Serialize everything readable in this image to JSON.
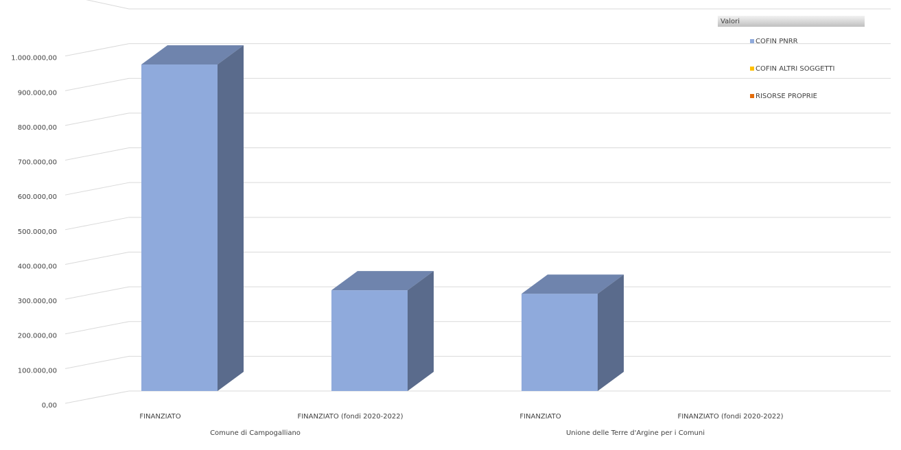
{
  "chart_data": {
    "type": "bar3d",
    "groups": [
      {
        "label": "Comune di Campogalliano",
        "categories": [
          "FINANZIATO",
          "FINANZIATO (fondi 2020-2022)"
        ]
      },
      {
        "label": "Unione delle Terre d'Argine per i Comuni",
        "categories": [
          "FINANZIATO",
          "FINANZIATO (fondi 2020-2022)"
        ]
      }
    ],
    "legend_title": "Valori",
    "series": [
      {
        "name": "COFIN PNRR",
        "color": "#8faadc",
        "values": [
          940000,
          290000,
          280000,
          null
        ]
      },
      {
        "name": "COFIN ALTRI SOGGETTI",
        "color": "#ffc000",
        "values": [
          null,
          null,
          null,
          null
        ]
      },
      {
        "name": "RISORSE PROPRIE",
        "color": "#e46c0a",
        "values": [
          null,
          null,
          null,
          null
        ]
      }
    ],
    "ylim": [
      0,
      1100000
    ],
    "yticks": [
      {
        "value": 0,
        "label": "0,00"
      },
      {
        "value": 100000,
        "label": "100.000,00"
      },
      {
        "value": 200000,
        "label": "200.000,00"
      },
      {
        "value": 300000,
        "label": "300.000,00"
      },
      {
        "value": 400000,
        "label": "400.000,00"
      },
      {
        "value": 500000,
        "label": "500.000,00"
      },
      {
        "value": 600000,
        "label": "600.000,00"
      },
      {
        "value": 700000,
        "label": "700.000,00"
      },
      {
        "value": 800000,
        "label": "800.000,00"
      },
      {
        "value": 900000,
        "label": "900.000,00"
      },
      {
        "value": 1000000,
        "label": "1.000.000,00"
      }
    ],
    "grid": true,
    "legend_position": "top-right"
  }
}
